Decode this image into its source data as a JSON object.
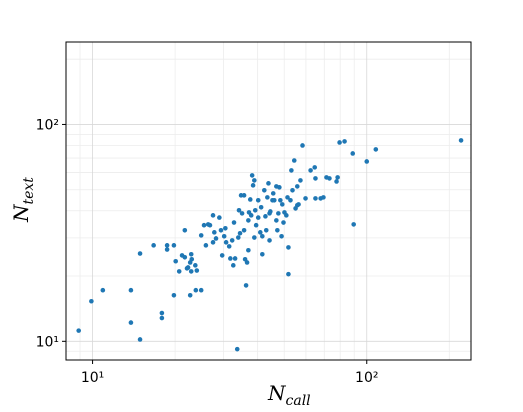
{
  "chart_data": {
    "type": "scatter",
    "x_label": [
      "N",
      "call"
    ],
    "y_label": [
      "N",
      "text"
    ],
    "color": "#1f77b4",
    "xscale": "log",
    "yscale": "log",
    "grid": true,
    "xlim": [
      8,
      240
    ],
    "ylim": [
      8.2,
      240
    ],
    "xticks": [
      {
        "value": 10,
        "label": "10¹"
      },
      {
        "value": 100,
        "label": "10²"
      }
    ],
    "yticks": [
      {
        "value": 10,
        "label": "10¹"
      },
      {
        "value": 100,
        "label": "10²"
      }
    ],
    "xminorticks": [
      9,
      20,
      30,
      40,
      50,
      60,
      70,
      80,
      90,
      200
    ],
    "yminorticks": [
      9,
      20,
      30,
      40,
      50,
      60,
      70,
      80,
      90,
      200
    ],
    "x": [
      8.9,
      9.9,
      10.9,
      13.8,
      13.8,
      14.9,
      14.9,
      16.7,
      17.9,
      17.9,
      18.7,
      18.7,
      19.8,
      19.8,
      20.1,
      20.7,
      21.2,
      21.7,
      21.7,
      22.1,
      22.3,
      22.7,
      22.7,
      22.9,
      22.9,
      23.0,
      23.7,
      23.8,
      24.0,
      24.9,
      24.9,
      25.5,
      25.9,
      26.4,
      26.8,
      27.5,
      27.5,
      27.8,
      28.2,
      29.0,
      29.4,
      29.7,
      30.2,
      30.5,
      30.7,
      31.5,
      31.8,
      32.3,
      32.6,
      32.8,
      33.1,
      33.7,
      34.0,
      34.2,
      34.5,
      34.8,
      35.1,
      35.7,
      35.7,
      36.0,
      36.3,
      36.6,
      37.0,
      37.0,
      37.2,
      37.6,
      37.9,
      38.2,
      38.5,
      38.9,
      38.9,
      39.2,
      39.5,
      40.2,
      40.2,
      40.9,
      41.2,
      41.6,
      41.6,
      42.3,
      42.7,
      43.0,
      43.4,
      43.8,
      44.2,
      44.2,
      44.5,
      45.3,
      45.6,
      46.0,
      46.8,
      46.8,
      47.2,
      47.6,
      48.0,
      48.4,
      48.9,
      49.2,
      49.7,
      50.1,
      50.9,
      51.4,
      51.8,
      51.8,
      52.7,
      53.1,
      53.6,
      54.4,
      55.0,
      55.8,
      55.8,
      56.4,
      57.3,
      58.3,
      59.8,
      62.4,
      64.6,
      65.0,
      65.0,
      67.9,
      69.5,
      71.3,
      73.1,
      77.6,
      78.3,
      79.6,
      83.0,
      88.9,
      89.6,
      100,
      107.9,
      220.8
    ],
    "y": [
      11.2,
      15.3,
      17.2,
      17.2,
      12.2,
      10.2,
      25.4,
      27.7,
      12.8,
      13.5,
      27.7,
      26.5,
      27.7,
      16.3,
      23.4,
      21.0,
      24.9,
      24.4,
      32.5,
      21.7,
      21.9,
      23.1,
      16.3,
      21.0,
      25.2,
      23.9,
      22.4,
      17.2,
      21.2,
      17.2,
      30.8,
      34.3,
      27.7,
      34.6,
      34.3,
      28.6,
      38.1,
      31.8,
      29.8,
      37.2,
      32.5,
      24.9,
      30.5,
      33.2,
      28.6,
      27.4,
      24.1,
      29.2,
      22.4,
      35.3,
      24.1,
      9.2,
      30.1,
      40.2,
      31.5,
      47.1,
      38.9,
      47.1,
      32.5,
      23.9,
      18.1,
      23.1,
      26.3,
      36.1,
      39.3,
      45.1,
      38.1,
      58.2,
      52.4,
      55.2,
      30.1,
      40.2,
      34.3,
      44.7,
      37.2,
      31.8,
      41.5,
      30.5,
      25.2,
      49.7,
      37.7,
      32.5,
      46.1,
      53.5,
      38.9,
      29.2,
      39.7,
      44.7,
      48.1,
      44.7,
      51.8,
      36.1,
      32.5,
      38.9,
      51.3,
      44.7,
      30.5,
      42.8,
      35.3,
      39.3,
      38.1,
      46.1,
      20.4,
      27.1,
      44.7,
      61.4,
      49.7,
      68.2,
      41.0,
      51.8,
      42.4,
      42.8,
      55.2,
      80.0,
      45.6,
      61.4,
      63.4,
      45.6,
      56.4,
      45.6,
      46.1,
      57.0,
      56.4,
      54.6,
      57.0,
      82.6,
      83.5,
      73.5,
      34.6,
      67.5,
      76.7,
      84.4
    ]
  }
}
